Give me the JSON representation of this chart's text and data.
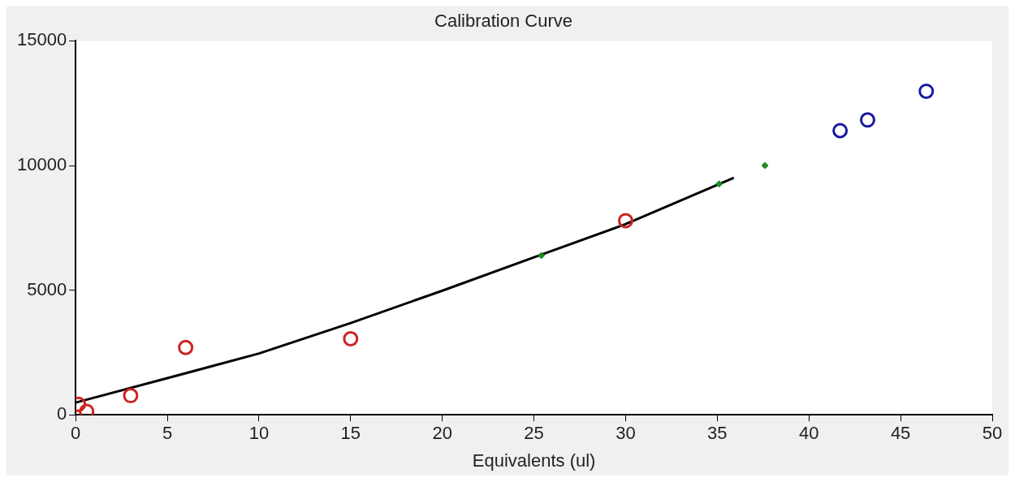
{
  "chart_data": {
    "type": "scatter",
    "title": "Calibration Curve",
    "xlabel": "Equivalents (ul)",
    "xlim": [
      0,
      50
    ],
    "xticks": [
      0,
      5,
      10,
      15,
      20,
      25,
      30,
      35,
      40,
      45,
      50
    ],
    "ylim": [
      0,
      15000
    ],
    "yticks": [
      0,
      5000,
      10000,
      15000
    ],
    "grid": false,
    "legend": false,
    "series": [
      {
        "type": "line",
        "color": "#000000",
        "marker": "none",
        "line_style": "solid",
        "x": [
          0,
          5,
          10,
          15,
          20,
          25,
          30,
          35.9
        ],
        "values": [
          490,
          1470,
          2460,
          3680,
          4980,
          6320,
          7650,
          9510
        ]
      },
      {
        "type": "scatter",
        "color": "#cc2222",
        "marker": "circle",
        "x": [
          0.15,
          0.6,
          3,
          6,
          15,
          30
        ],
        "values": [
          420,
          140,
          770,
          2700,
          3050,
          7790
        ]
      },
      {
        "type": "scatter",
        "color": "#228b22",
        "marker": "diamond",
        "x": [
          25.4,
          35.1,
          37.6
        ],
        "values": [
          6390,
          9260,
          10000
        ]
      },
      {
        "type": "scatter",
        "color": "#1a1aa0",
        "marker": "circle",
        "x": [
          41.7,
          43.2,
          46.4
        ],
        "values": [
          11400,
          11830,
          12980
        ]
      }
    ]
  }
}
